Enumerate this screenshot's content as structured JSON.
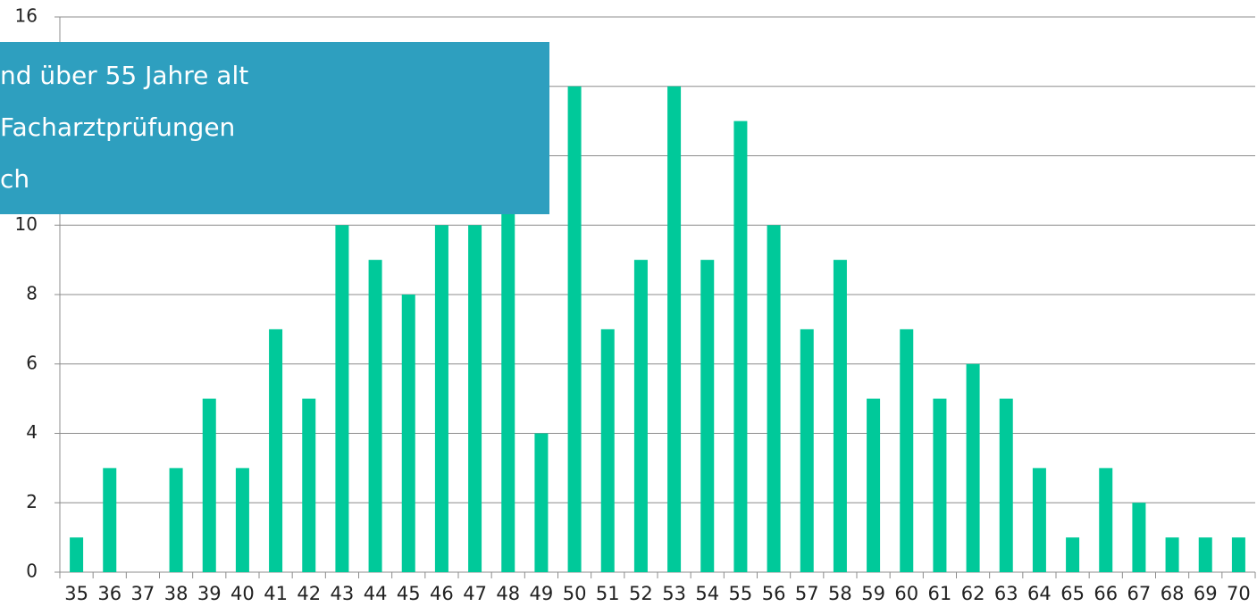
{
  "chart_data": {
    "type": "bar",
    "annotation": [
      "nd über 55 Jahre alt",
      "Facharztprüfungen",
      "ch"
    ],
    "categories": [
      "35",
      "36",
      "37",
      "38",
      "39",
      "40",
      "41",
      "42",
      "43",
      "44",
      "45",
      "46",
      "47",
      "48",
      "49",
      "50",
      "51",
      "52",
      "53",
      "54",
      "55",
      "56",
      "57",
      "58",
      "59",
      "60",
      "61",
      "62",
      "63",
      "64",
      "65",
      "66",
      "67",
      "68",
      "69",
      "70"
    ],
    "values": [
      1,
      3,
      0,
      3,
      5,
      3,
      7,
      5,
      10,
      9,
      8,
      10,
      10,
      11,
      4,
      14,
      7,
      9,
      14,
      9,
      13,
      10,
      7,
      9,
      5,
      7,
      5,
      6,
      5,
      3,
      1,
      3,
      2,
      1,
      1,
      1
    ],
    "color": "#00c99a",
    "ylim": [
      0,
      16
    ],
    "yticks": [
      0,
      2,
      4,
      6,
      8,
      10,
      12,
      14,
      16
    ],
    "grid": true
  }
}
